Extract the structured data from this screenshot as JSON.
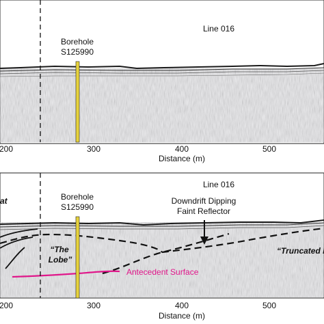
{
  "panels": [
    {
      "line_label": "Line 016",
      "borehole": [
        "Borehole",
        "S125990"
      ],
      "ticks": [
        "200",
        "300",
        "400",
        "500"
      ],
      "xlabel": "Distance (m)",
      "annotations": []
    },
    {
      "line_label": "Line 016",
      "borehole": [
        "Borehole",
        "S125990"
      ],
      "ticks": [
        "200",
        "300",
        "400",
        "500"
      ],
      "xlabel": "Distance (m)",
      "side_text": "at",
      "annotations": {
        "reflector": [
          "Downdrift Dipping",
          "Faint Reflector"
        ],
        "lobe": [
          "“The",
          "Lobe”"
        ],
        "truncated": "“Truncated E",
        "antecedent": "Antecedent Surface"
      }
    }
  ],
  "colors": {
    "borehole": "#e6d23c",
    "antecedent": "#e0168a",
    "interpretation": "#111111",
    "radar_bg": "#d4d4d8"
  }
}
